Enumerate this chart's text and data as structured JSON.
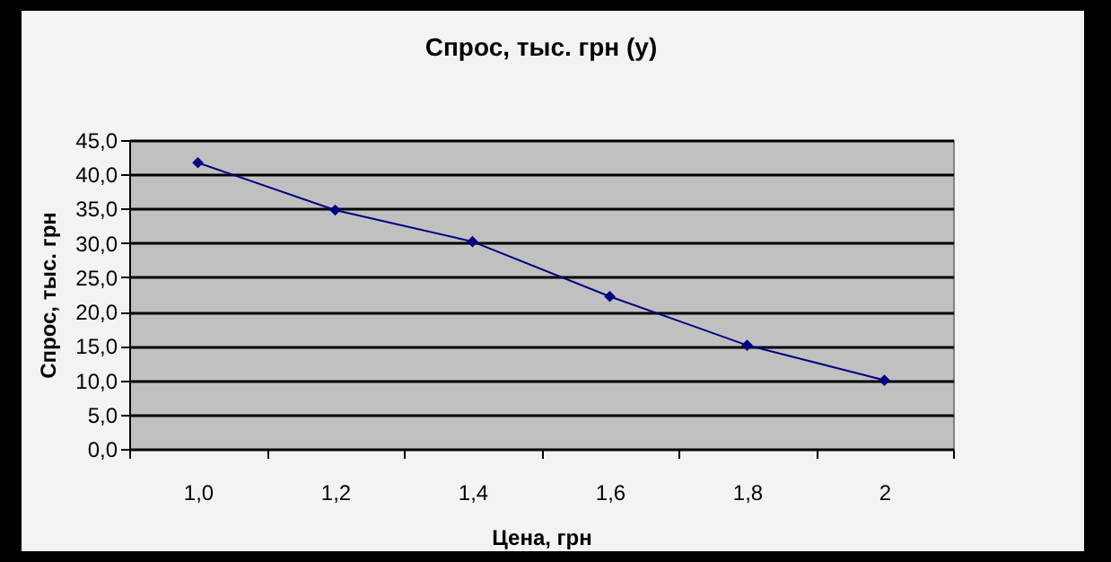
{
  "chart_data": {
    "type": "line",
    "title": "Спрос, тыс. грн (у)",
    "xlabel": "Цена, грн",
    "ylabel": "Спрос, тыс. грн",
    "categories": [
      "1,0",
      "1,2",
      "1,4",
      "1,6",
      "1,8",
      "2"
    ],
    "series": [
      {
        "color": "#000080",
        "values": [
          41.7,
          34.8,
          30.2,
          22.2,
          15.1,
          10.0
        ]
      }
    ],
    "ylim": [
      0,
      45
    ],
    "yticks": [
      {
        "value": 0,
        "label": "0,0"
      },
      {
        "value": 5,
        "label": "5,0"
      },
      {
        "value": 10,
        "label": "10,0"
      },
      {
        "value": 15,
        "label": "15,0"
      },
      {
        "value": 20,
        "label": "20,0"
      },
      {
        "value": 25,
        "label": "25,0"
      },
      {
        "value": 30,
        "label": "30,0"
      },
      {
        "value": 35,
        "label": "35,0"
      },
      {
        "value": 40,
        "label": "40,0"
      },
      {
        "value": 45,
        "label": "45,0"
      }
    ],
    "grid": "y",
    "marker": "diamond"
  }
}
